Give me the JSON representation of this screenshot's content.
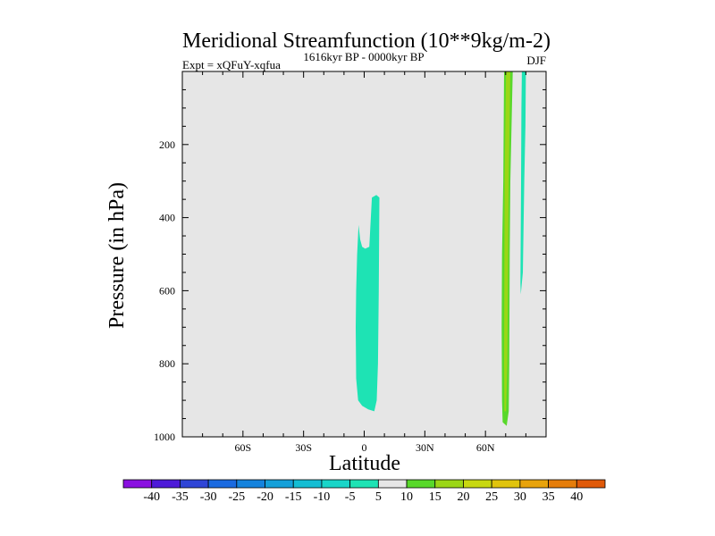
{
  "chart_data": {
    "type": "contour",
    "title": "Meridional Streamfunction (10**9kg/m-2)",
    "experiment": "Expt = xQFuY-xqfua",
    "period": "1616kyr BP - 0000kyr BP",
    "season": "DJF",
    "xlabel": "Latitude",
    "ylabel": "Pressure (in hPa)",
    "xlim": [
      -90,
      90
    ],
    "ylim": [
      0,
      1000
    ],
    "y_inverted": true,
    "x_ticks": [
      {
        "value": -60,
        "label": "60S"
      },
      {
        "value": -30,
        "label": "30S"
      },
      {
        "value": 0,
        "label": "0"
      },
      {
        "value": 30,
        "label": "30N"
      },
      {
        "value": 60,
        "label": "60N"
      }
    ],
    "y_ticks": [
      {
        "value": 200,
        "label": "200"
      },
      {
        "value": 400,
        "label": "400"
      },
      {
        "value": 600,
        "label": "600"
      },
      {
        "value": 800,
        "label": "800"
      },
      {
        "value": 1000,
        "label": "1000"
      }
    ],
    "background_level": "-5 to 5",
    "background_color": "#e6e6e6",
    "contour_regions": [
      {
        "level": "-10 to -5",
        "color": "#1ee3b4",
        "polygon": [
          [
            -3.5,
            500
          ],
          [
            -2.8,
            420
          ],
          [
            -2,
            460
          ],
          [
            -1,
            480
          ],
          [
            0.5,
            485
          ],
          [
            2.5,
            480
          ],
          [
            3.8,
            345
          ],
          [
            6,
            338
          ],
          [
            7.5,
            345
          ],
          [
            7.2,
            600
          ],
          [
            6.8,
            800
          ],
          [
            6.2,
            900
          ],
          [
            5,
            930
          ],
          [
            2,
            925
          ],
          [
            -1,
            915
          ],
          [
            -3,
            900
          ],
          [
            -4,
            840
          ],
          [
            -4.2,
            700
          ],
          [
            -4,
            600
          ]
        ]
      },
      {
        "level": "5 to 10",
        "color": "#58d82a",
        "polygon": [
          [
            69.2,
            0
          ],
          [
            73.5,
            0
          ],
          [
            72.3,
            300
          ],
          [
            72,
            500
          ],
          [
            71.8,
            800
          ],
          [
            71.5,
            930
          ],
          [
            70.5,
            970
          ],
          [
            68.5,
            960
          ],
          [
            68.2,
            900
          ],
          [
            68,
            700
          ],
          [
            68.2,
            500
          ],
          [
            68.8,
            300
          ]
        ]
      },
      {
        "level": "10 to 15",
        "color": "#9bd616",
        "polygon": [
          [
            70.2,
            0
          ],
          [
            72.3,
            0
          ],
          [
            71.5,
            300
          ],
          [
            70.8,
            800
          ],
          [
            70.2,
            930
          ],
          [
            69.4,
            930
          ],
          [
            69.2,
            800
          ],
          [
            69.5,
            300
          ]
        ]
      },
      {
        "level": "-10 to -5",
        "color": "#1ee3b4",
        "polygon": [
          [
            78,
            0
          ],
          [
            80,
            0
          ],
          [
            79.8,
            150
          ],
          [
            79.2,
            300
          ],
          [
            78.5,
            550
          ],
          [
            77.5,
            610
          ],
          [
            77.3,
            580
          ],
          [
            77.6,
            300
          ],
          [
            77.8,
            100
          ]
        ]
      }
    ],
    "colorbar": {
      "labels": [
        "-40",
        "-35",
        "-30",
        "-25",
        "-20",
        "-15",
        "-10",
        "-5",
        "5",
        "10",
        "15",
        "20",
        "25",
        "30",
        "35",
        "40"
      ],
      "colors": [
        "#8a10e0",
        "#4e1ad8",
        "#2f45d6",
        "#1a6ae0",
        "#1583dd",
        "#15a0d9",
        "#14bdd3",
        "#19d5c8",
        "#1ee3b4",
        "#e6e6e6",
        "#58d82a",
        "#9bd616",
        "#c8d810",
        "#e0c40d",
        "#e8a30c",
        "#e57d0b",
        "#e05a0a"
      ]
    }
  }
}
